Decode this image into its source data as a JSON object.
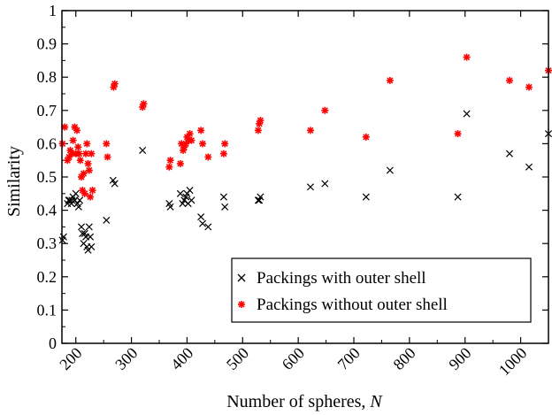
{
  "chart_data": {
    "type": "scatter",
    "xlabel": "Number of spheres, ",
    "xlabel_var": "N",
    "ylabel": "Similarity",
    "xlim": [
      175,
      1050
    ],
    "ylim": [
      0,
      1
    ],
    "xticks": [
      "200",
      "300",
      "400",
      "500",
      "600",
      "700",
      "800",
      "900",
      "1000"
    ],
    "yticks": [
      "0",
      "0.1",
      "0.2",
      "0.3",
      "0.4",
      "0.5",
      "0.6",
      "0.7",
      "0.8",
      "0.9",
      "1"
    ],
    "legend_position": "bottom-right",
    "series": [
      {
        "name": "Packings with outer shell",
        "color": "#000000",
        "marker": "x",
        "points": [
          [
            176,
            0.31
          ],
          [
            178,
            0.32
          ],
          [
            185,
            0.42
          ],
          [
            187,
            0.43
          ],
          [
            189,
            0.43
          ],
          [
            192,
            0.42
          ],
          [
            193,
            0.43
          ],
          [
            195,
            0.44
          ],
          [
            198,
            0.43
          ],
          [
            200,
            0.45
          ],
          [
            203,
            0.42
          ],
          [
            205,
            0.41
          ],
          [
            207,
            0.43
          ],
          [
            210,
            0.35
          ],
          [
            212,
            0.33
          ],
          [
            214,
            0.3
          ],
          [
            216,
            0.33
          ],
          [
            218,
            0.32
          ],
          [
            220,
            0.29
          ],
          [
            222,
            0.28
          ],
          [
            224,
            0.35
          ],
          [
            226,
            0.32
          ],
          [
            228,
            0.29
          ],
          [
            255,
            0.37
          ],
          [
            267,
            0.49
          ],
          [
            270,
            0.48
          ],
          [
            320,
            0.58
          ],
          [
            368,
            0.42
          ],
          [
            370,
            0.41
          ],
          [
            388,
            0.45
          ],
          [
            392,
            0.42
          ],
          [
            395,
            0.43
          ],
          [
            398,
            0.44
          ],
          [
            400,
            0.45
          ],
          [
            402,
            0.42
          ],
          [
            405,
            0.46
          ],
          [
            408,
            0.43
          ],
          [
            425,
            0.38
          ],
          [
            428,
            0.36
          ],
          [
            438,
            0.35
          ],
          [
            466,
            0.44
          ],
          [
            468,
            0.41
          ],
          [
            528,
            0.43
          ],
          [
            530,
            0.43
          ],
          [
            532,
            0.44
          ],
          [
            622,
            0.47
          ],
          [
            648,
            0.48
          ],
          [
            722,
            0.44
          ],
          [
            765,
            0.52
          ],
          [
            887,
            0.44
          ],
          [
            903,
            0.69
          ],
          [
            980,
            0.57
          ],
          [
            1015,
            0.53
          ],
          [
            1050,
            0.63
          ]
        ]
      },
      {
        "name": "Packings without outer shell",
        "color": "#ff0000",
        "marker": "*",
        "points": [
          [
            176,
            0.6
          ],
          [
            180,
            0.65
          ],
          [
            185,
            0.55
          ],
          [
            188,
            0.56
          ],
          [
            190,
            0.58
          ],
          [
            193,
            0.57
          ],
          [
            195,
            0.61
          ],
          [
            198,
            0.65
          ],
          [
            200,
            0.57
          ],
          [
            202,
            0.64
          ],
          [
            204,
            0.59
          ],
          [
            206,
            0.57
          ],
          [
            208,
            0.55
          ],
          [
            210,
            0.5
          ],
          [
            212,
            0.46
          ],
          [
            214,
            0.51
          ],
          [
            216,
            0.45
          ],
          [
            218,
            0.57
          ],
          [
            220,
            0.6
          ],
          [
            222,
            0.54
          ],
          [
            224,
            0.52
          ],
          [
            226,
            0.44
          ],
          [
            228,
            0.57
          ],
          [
            230,
            0.46
          ],
          [
            255,
            0.6
          ],
          [
            257,
            0.56
          ],
          [
            268,
            0.77
          ],
          [
            270,
            0.78
          ],
          [
            320,
            0.71
          ],
          [
            322,
            0.72
          ],
          [
            368,
            0.53
          ],
          [
            370,
            0.55
          ],
          [
            388,
            0.54
          ],
          [
            390,
            0.6
          ],
          [
            393,
            0.58
          ],
          [
            395,
            0.59
          ],
          [
            398,
            0.6
          ],
          [
            400,
            0.62
          ],
          [
            403,
            0.61
          ],
          [
            405,
            0.63
          ],
          [
            408,
            0.61
          ],
          [
            425,
            0.64
          ],
          [
            428,
            0.6
          ],
          [
            438,
            0.56
          ],
          [
            466,
            0.57
          ],
          [
            468,
            0.6
          ],
          [
            528,
            0.64
          ],
          [
            530,
            0.66
          ],
          [
            532,
            0.67
          ],
          [
            622,
            0.64
          ],
          [
            648,
            0.7
          ],
          [
            722,
            0.62
          ],
          [
            765,
            0.79
          ],
          [
            887,
            0.63
          ],
          [
            903,
            0.86
          ],
          [
            980,
            0.79
          ],
          [
            1015,
            0.77
          ],
          [
            1050,
            0.82
          ]
        ]
      }
    ]
  }
}
